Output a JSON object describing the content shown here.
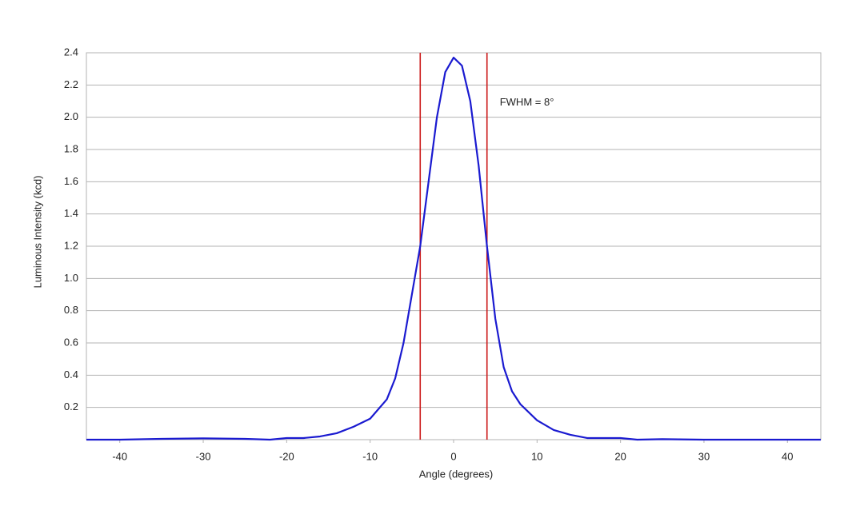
{
  "chart_data": {
    "type": "line",
    "x_label": "Angle (degrees)",
    "y_label": "Luminous Intensity (kcd)",
    "annotation": "FWHM = 8°",
    "x": [
      -44,
      -40,
      -35,
      -30,
      -25,
      -22,
      -20,
      -18,
      -16,
      -14,
      -12,
      -10,
      -8,
      -7,
      -6,
      -5,
      -4,
      -3,
      -2,
      -1,
      0,
      1,
      2,
      3,
      4,
      5,
      6,
      7,
      8,
      10,
      12,
      14,
      16,
      18,
      20,
      22,
      25,
      30,
      40,
      44
    ],
    "series": [
      {
        "name": "Luminous Intensity",
        "color": "#1a1ad0",
        "values": [
          0,
          0,
          0.005,
          0.008,
          0.005,
          0,
          0.01,
          0.01,
          0.02,
          0.04,
          0.08,
          0.13,
          0.25,
          0.38,
          0.6,
          0.9,
          1.2,
          1.6,
          2.0,
          2.28,
          2.37,
          2.32,
          2.1,
          1.7,
          1.2,
          0.75,
          0.45,
          0.3,
          0.22,
          0.12,
          0.06,
          0.03,
          0.01,
          0.01,
          0.01,
          0,
          0.003,
          0,
          0,
          0
        ]
      }
    ],
    "vlines": [
      -4,
      4
    ],
    "vline_color": "#cc1a1a",
    "xlim": [
      -44,
      44
    ],
    "ylim": [
      0,
      2.4
    ],
    "xticks": [
      -40,
      -30,
      -20,
      -10,
      0,
      10,
      20,
      30,
      40
    ],
    "yticks": [
      0.2,
      0.4,
      0.6,
      0.8,
      {
        "value": 1,
        "label": "1.0"
      },
      1.2,
      1.4,
      1.6,
      1.8,
      {
        "value": 2,
        "label": "2.0"
      },
      2.2,
      2.4
    ],
    "grid": true
  }
}
